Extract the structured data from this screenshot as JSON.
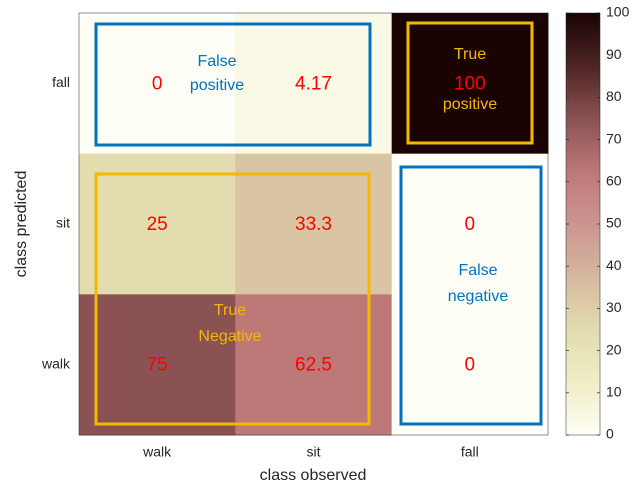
{
  "chart_data": {
    "type": "heatmap",
    "x_label": "class observed",
    "y_label": "class predicted",
    "x_categories": [
      "walk",
      "sit",
      "fall"
    ],
    "y_categories": [
      "fall",
      "sit",
      "walk"
    ],
    "values": [
      [
        0,
        4.17,
        100
      ],
      [
        25,
        33.3,
        0
      ],
      [
        75,
        62.5,
        0
      ]
    ],
    "clim": [
      0,
      100
    ],
    "cticks": [
      0,
      10,
      20,
      30,
      40,
      50,
      60,
      70,
      80,
      90,
      100
    ],
    "colorscale": [
      "#fefef6",
      "#efeec6",
      "#e2dcae",
      "#d5b89e",
      "#cc9590",
      "#bd7878",
      "#8a5252",
      "#4e2424",
      "#1a0303"
    ],
    "annotations": [
      {
        "lines": [
          "False",
          "positive"
        ],
        "color": "#0072bd"
      },
      {
        "lines": [
          "True",
          "positive"
        ],
        "color": "#f5b800"
      },
      {
        "lines": [
          "True",
          "Negative"
        ],
        "color": "#f5b800"
      },
      {
        "lines": [
          "False",
          "negative"
        ],
        "color": "#0072bd"
      }
    ]
  }
}
